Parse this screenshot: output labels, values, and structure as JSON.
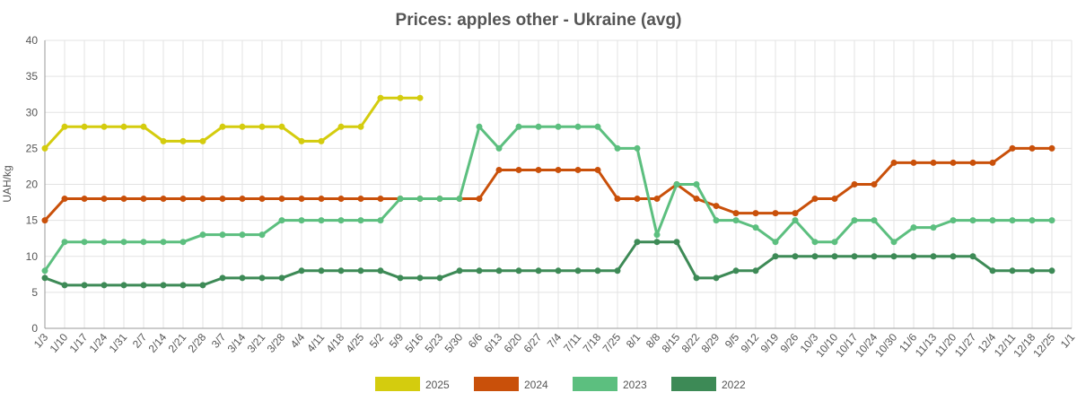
{
  "chart_data": {
    "type": "line",
    "title": "Prices: apples other - Ukraine (avg)",
    "y_label": "UAH/kg",
    "categories": [
      "1/3",
      "1/10",
      "1/17",
      "1/24",
      "1/31",
      "2/7",
      "2/14",
      "2/21",
      "2/28",
      "3/7",
      "3/14",
      "3/21",
      "3/28",
      "4/4",
      "4/11",
      "4/18",
      "4/25",
      "5/2",
      "5/9",
      "5/16",
      "5/23",
      "5/30",
      "6/6",
      "6/13",
      "6/20",
      "6/27",
      "7/4",
      "7/11",
      "7/18",
      "7/25",
      "8/1",
      "8/8",
      "8/15",
      "8/22",
      "8/29",
      "9/5",
      "9/12",
      "9/19",
      "9/26",
      "10/3",
      "10/10",
      "10/17",
      "10/24",
      "10/30",
      "11/6",
      "11/13",
      "11/20",
      "11/27",
      "12/4",
      "12/11",
      "12/18",
      "12/25",
      "1/1"
    ],
    "series": [
      {
        "name": "2025",
        "color": "#d4cc0e",
        "values": [
          25,
          28,
          28,
          28,
          28,
          28,
          26,
          26,
          26,
          28,
          28,
          28,
          28,
          26,
          26,
          28,
          28,
          32,
          32,
          32,
          null,
          null,
          null,
          null,
          null,
          null,
          null,
          null,
          null,
          null,
          null,
          null,
          null,
          null,
          null,
          null,
          null,
          null,
          null,
          null,
          null,
          null,
          null,
          null,
          null,
          null,
          null,
          null,
          null,
          null,
          null,
          null,
          null
        ]
      },
      {
        "name": "2024",
        "color": "#c9500a",
        "values": [
          15,
          18,
          18,
          18,
          18,
          18,
          18,
          18,
          18,
          18,
          18,
          18,
          18,
          18,
          18,
          18,
          18,
          18,
          18,
          18,
          18,
          18,
          18,
          22,
          22,
          22,
          22,
          22,
          22,
          18,
          18,
          18,
          20,
          18,
          17,
          16,
          16,
          16,
          16,
          18,
          18,
          20,
          20,
          23,
          23,
          23,
          23,
          23,
          23,
          25,
          25,
          25,
          null
        ]
      },
      {
        "name": "2023",
        "color": "#5cbf7f",
        "values": [
          8,
          12,
          12,
          12,
          12,
          12,
          12,
          12,
          13,
          13,
          13,
          13,
          15,
          15,
          15,
          15,
          15,
          15,
          18,
          18,
          18,
          18,
          28,
          25,
          28,
          28,
          28,
          28,
          28,
          25,
          25,
          13,
          20,
          20,
          15,
          15,
          14,
          12,
          15,
          12,
          12,
          15,
          15,
          12,
          14,
          14,
          15,
          15,
          15,
          15,
          15,
          15,
          null
        ]
      },
      {
        "name": "2022",
        "color": "#3d8a56",
        "values": [
          7,
          6,
          6,
          6,
          6,
          6,
          6,
          6,
          6,
          7,
          7,
          7,
          7,
          8,
          8,
          8,
          8,
          8,
          7,
          7,
          7,
          8,
          8,
          8,
          8,
          8,
          8,
          8,
          8,
          8,
          12,
          12,
          12,
          7,
          7,
          8,
          8,
          10,
          10,
          10,
          10,
          10,
          10,
          10,
          10,
          10,
          10,
          10,
          8,
          8,
          8,
          8,
          null
        ]
      }
    ],
    "ylim": [
      0,
      40
    ],
    "yticks": [
      0,
      5,
      10,
      15,
      20,
      25,
      30,
      35,
      40
    ],
    "grid": true
  }
}
